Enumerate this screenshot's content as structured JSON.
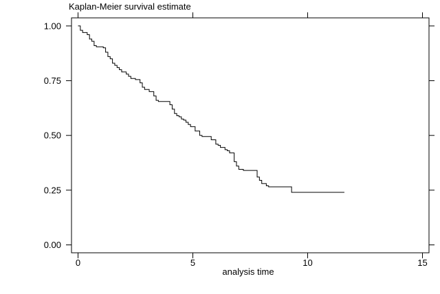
{
  "chart_data": {
    "type": "line",
    "title": "Kaplan-Meier survival estimate",
    "xlabel": "analysis time",
    "ylabel": "",
    "xlim": [
      0,
      15
    ],
    "ylim": [
      0,
      1
    ],
    "x_ticks": [
      0,
      5,
      10,
      15
    ],
    "y_ticks": [
      0.0,
      0.25,
      0.5,
      0.75,
      1.0
    ],
    "x_tick_labels": [
      "0",
      "5",
      "10",
      "15"
    ],
    "y_tick_labels": [
      "0.00",
      "0.25",
      "0.50",
      "0.75",
      "1.00"
    ],
    "grid": false,
    "line_color": "#000000",
    "series": [
      {
        "step": "post",
        "x": [
          0,
          0.1,
          0.2,
          0.4,
          0.5,
          0.6,
          0.7,
          0.8,
          1.1,
          1.2,
          1.3,
          1.4,
          1.5,
          1.6,
          1.7,
          1.8,
          1.9,
          2.1,
          2.2,
          2.3,
          2.5,
          2.7,
          2.8,
          2.9,
          3.1,
          3.3,
          3.4,
          3.5,
          4.0,
          4.1,
          4.2,
          4.3,
          4.4,
          4.5,
          4.6,
          4.7,
          4.8,
          4.9,
          5.1,
          5.3,
          5.4,
          5.8,
          6.0,
          6.1,
          6.2,
          6.4,
          6.5,
          6.6,
          6.8,
          6.9,
          7.0,
          7.2,
          7.8,
          7.9,
          8.0,
          8.2,
          8.3,
          9.3,
          11.6
        ],
        "y": [
          1.0,
          0.98,
          0.97,
          0.96,
          0.94,
          0.93,
          0.91,
          0.905,
          0.9,
          0.88,
          0.86,
          0.85,
          0.83,
          0.82,
          0.81,
          0.8,
          0.79,
          0.78,
          0.77,
          0.76,
          0.755,
          0.74,
          0.72,
          0.71,
          0.7,
          0.68,
          0.66,
          0.655,
          0.64,
          0.62,
          0.6,
          0.59,
          0.585,
          0.575,
          0.57,
          0.56,
          0.55,
          0.54,
          0.52,
          0.5,
          0.495,
          0.48,
          0.46,
          0.455,
          0.445,
          0.435,
          0.43,
          0.42,
          0.38,
          0.36,
          0.345,
          0.34,
          0.31,
          0.295,
          0.28,
          0.27,
          0.265,
          0.24,
          0.24
        ]
      }
    ]
  }
}
